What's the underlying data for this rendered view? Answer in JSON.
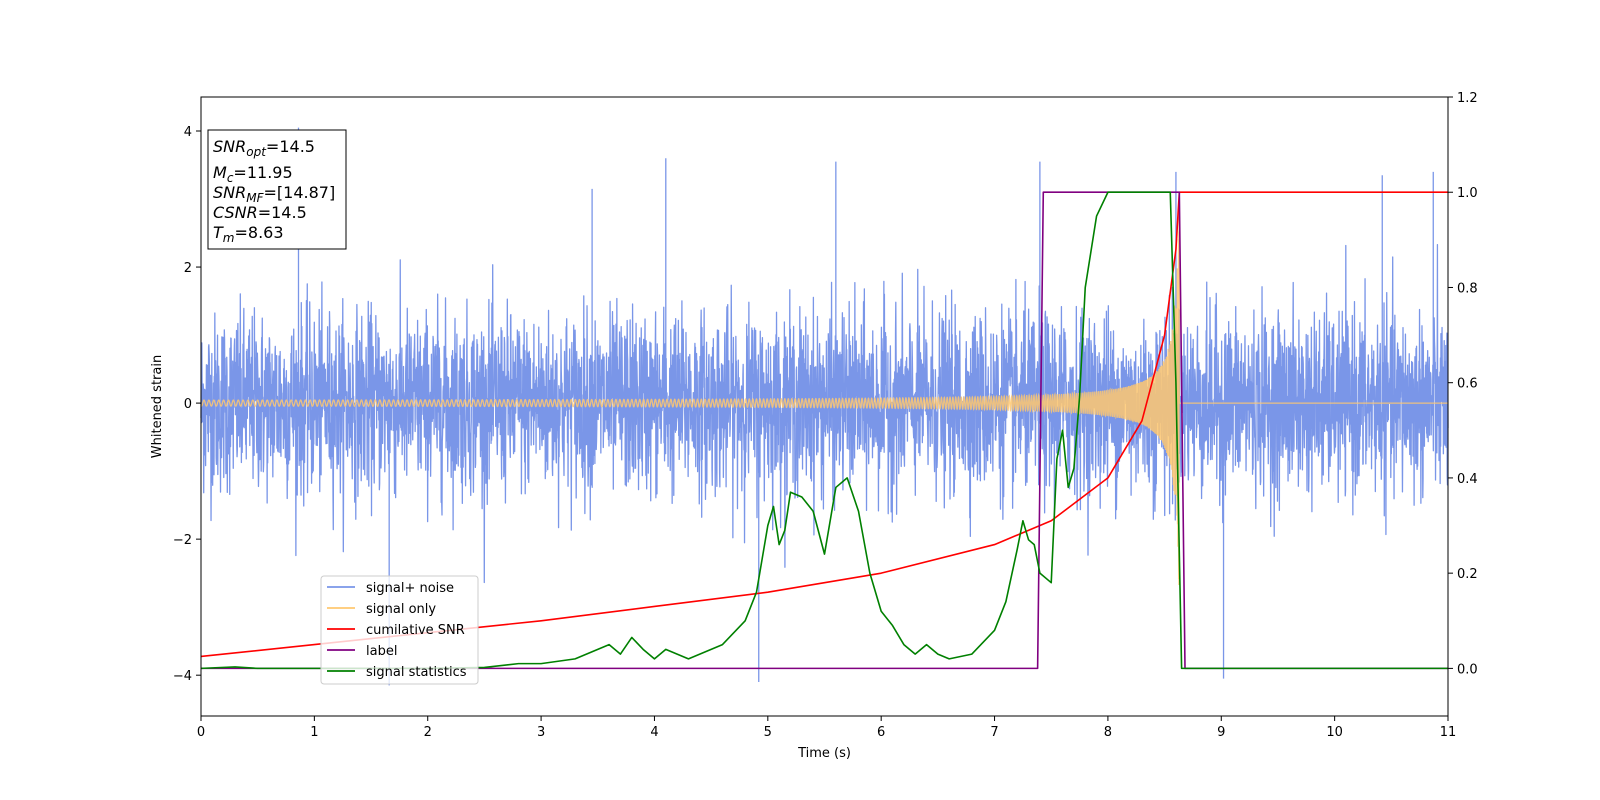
{
  "chart_data": {
    "type": "line",
    "xlabel": "Time (s)",
    "ylabel": "Whitened strain",
    "xlim": [
      0,
      11
    ],
    "ylim": [
      -4.6,
      4.5
    ],
    "y2lim": [
      -0.1,
      1.2
    ],
    "xticks": [
      "0",
      "1",
      "2",
      "3",
      "4",
      "5",
      "6",
      "7",
      "8",
      "9",
      "10",
      "11"
    ],
    "yticks": [
      "−4",
      "−2",
      "0",
      "2",
      "4"
    ],
    "yticks_values": [
      -4,
      -2,
      0,
      2,
      4
    ],
    "y2ticks": [
      "0.0",
      "0.2",
      "0.4",
      "0.6",
      "0.8",
      "1.0",
      "1.2"
    ],
    "y2ticks_values": [
      0.0,
      0.2,
      0.4,
      0.6,
      0.8,
      1.0,
      1.2
    ],
    "grid": false,
    "legend_position": "lower-left",
    "annotation": {
      "lines": [
        {
          "base": "SNR",
          "sub": "opt",
          "rest": "=14.5"
        },
        {
          "base": "M",
          "sub": "c",
          "rest": "=11.95"
        },
        {
          "base": "SNR",
          "sub": "MF",
          "rest": "=[14.87]"
        },
        {
          "base": "CSNR",
          "sub": "",
          "rest": "=14.5"
        },
        {
          "base": "T",
          "sub": "m",
          "rest": "=8.63"
        }
      ]
    },
    "noise": {
      "std": 0.65,
      "max": 4.05,
      "min": -4.15,
      "spikes": [
        {
          "x": 0.86,
          "y": 4.05
        },
        {
          "x": 1.66,
          "y": -4.15
        },
        {
          "x": 4.1,
          "y": 3.6
        },
        {
          "x": 5.6,
          "y": 3.55
        },
        {
          "x": 8.6,
          "y": 3.4
        },
        {
          "x": 4.92,
          "y": -4.1
        },
        {
          "x": 9.02,
          "y": -4.05
        },
        {
          "x": 7.4,
          "y": 3.55
        },
        {
          "x": 10.87,
          "y": 3.4
        },
        {
          "x": 10.42,
          "y": 3.35
        },
        {
          "x": 3.45,
          "y": 3.15
        }
      ]
    },
    "signal_only": {
      "start_amplitude": 0.03,
      "merger_time": 8.63,
      "peak_amplitude": 3.1
    },
    "series": [
      {
        "name": "signal+ noise",
        "color": "#7a96e8",
        "axis": "left"
      },
      {
        "name": "signal only",
        "color": "#ffc870",
        "axis": "left"
      },
      {
        "name": "cumilative SNR",
        "color": "#ff0000",
        "axis": "right",
        "x": [
          0,
          1,
          2,
          3,
          4,
          5,
          6,
          7,
          7.5,
          8.0,
          8.3,
          8.5,
          8.6,
          8.63,
          8.64,
          11
        ],
        "y": [
          0.025,
          0.05,
          0.075,
          0.1,
          0.13,
          0.16,
          0.2,
          0.26,
          0.31,
          0.4,
          0.52,
          0.7,
          0.88,
          1.0,
          1.0,
          1.0
        ]
      },
      {
        "name": "label",
        "color": "#800080",
        "axis": "right",
        "x": [
          0,
          7.38,
          7.43,
          8.63,
          8.68,
          11
        ],
        "y": [
          0,
          0,
          1,
          1,
          0,
          0
        ]
      },
      {
        "name": "signal statistics",
        "color": "#008000",
        "axis": "right",
        "x": [
          0,
          0.3,
          0.5,
          1.0,
          2.0,
          2.5,
          2.8,
          3.0,
          3.3,
          3.6,
          3.7,
          3.8,
          3.9,
          4.0,
          4.1,
          4.2,
          4.3,
          4.4,
          4.6,
          4.8,
          4.9,
          5.0,
          5.05,
          5.1,
          5.15,
          5.2,
          5.3,
          5.4,
          5.5,
          5.6,
          5.7,
          5.8,
          5.9,
          6.0,
          6.1,
          6.2,
          6.3,
          6.4,
          6.5,
          6.6,
          6.8,
          7.0,
          7.1,
          7.2,
          7.25,
          7.3,
          7.35,
          7.4,
          7.5,
          7.55,
          7.6,
          7.65,
          7.7,
          7.75,
          7.8,
          7.9,
          8.0,
          8.1,
          8.2,
          8.3,
          8.4,
          8.5,
          8.55,
          8.6,
          8.65,
          8.7,
          8.75,
          9.0,
          11
        ],
        "y": [
          0.0,
          0.003,
          0.0,
          0.0,
          0.0,
          0.002,
          0.01,
          0.01,
          0.02,
          0.05,
          0.03,
          0.065,
          0.04,
          0.02,
          0.04,
          0.03,
          0.02,
          0.03,
          0.05,
          0.1,
          0.16,
          0.3,
          0.34,
          0.26,
          0.29,
          0.37,
          0.36,
          0.33,
          0.24,
          0.38,
          0.4,
          0.33,
          0.2,
          0.12,
          0.09,
          0.05,
          0.03,
          0.05,
          0.03,
          0.02,
          0.03,
          0.08,
          0.14,
          0.25,
          0.31,
          0.27,
          0.26,
          0.2,
          0.18,
          0.44,
          0.5,
          0.38,
          0.42,
          0.57,
          0.8,
          0.95,
          1.0,
          1.0,
          1.0,
          1.0,
          1.0,
          1.0,
          1.0,
          0.6,
          0.0,
          0.0,
          0.0,
          0.0,
          0.0
        ]
      }
    ]
  }
}
